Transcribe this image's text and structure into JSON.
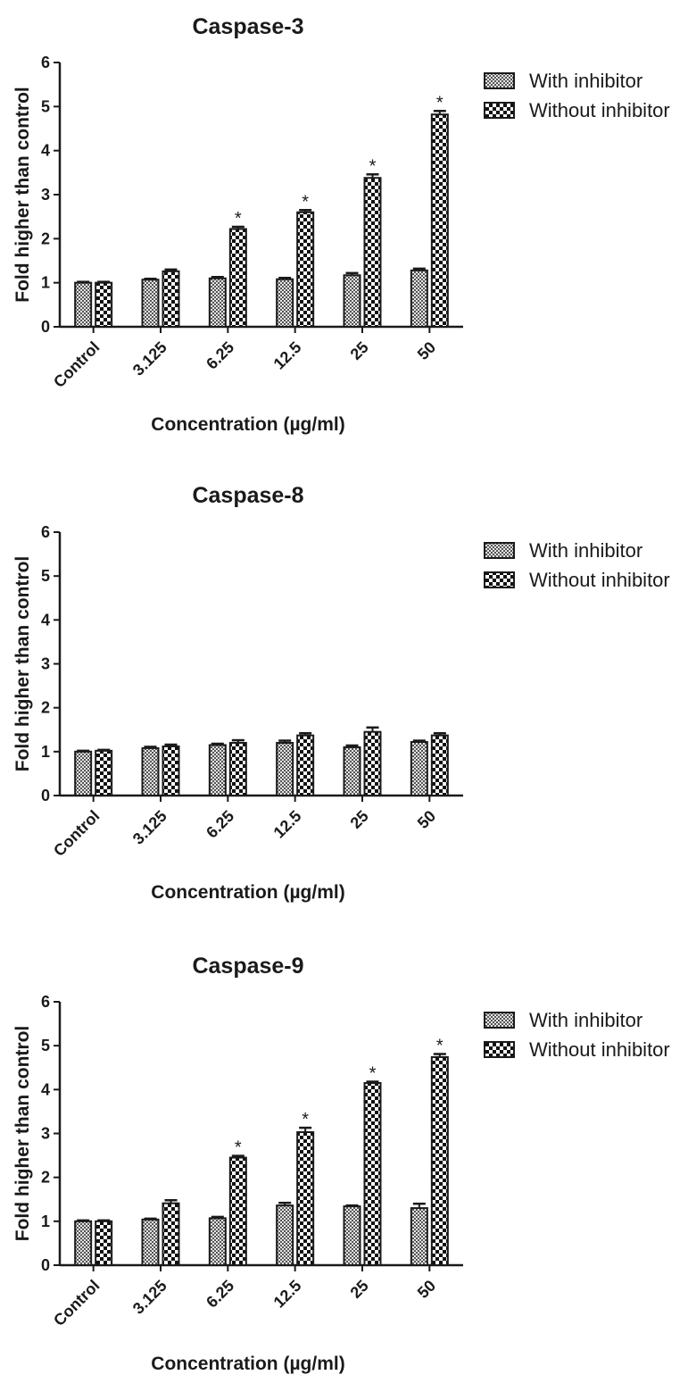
{
  "chart_data": [
    {
      "type": "bar",
      "title": "Caspase-3",
      "xlabel": "Concentration (µg/ml)",
      "ylabel": "Fold higher than control",
      "ylim": [
        0,
        6
      ],
      "yticks": [
        "0",
        "1",
        "2",
        "3",
        "4",
        "5",
        "6"
      ],
      "categories": [
        "Control",
        "3.125",
        "6.25",
        "12.5",
        "25",
        "50"
      ],
      "legend_position": "top-right",
      "series": [
        {
          "name": "With inhibitor",
          "values": [
            1.0,
            1.07,
            1.1,
            1.08,
            1.17,
            1.28
          ],
          "errors": [
            0.02,
            0.02,
            0.03,
            0.03,
            0.05,
            0.04
          ],
          "significant": [
            false,
            false,
            false,
            false,
            false,
            false
          ]
        },
        {
          "name": "Without inhibitor",
          "values": [
            1.0,
            1.26,
            2.22,
            2.6,
            3.38,
            4.82
          ],
          "errors": [
            0.02,
            0.04,
            0.05,
            0.05,
            0.08,
            0.08
          ],
          "significant": [
            false,
            false,
            true,
            true,
            true,
            true
          ]
        }
      ],
      "annotation": "*"
    },
    {
      "type": "bar",
      "title": "Caspase-8",
      "xlabel": "Concentration (µg/ml)",
      "ylabel": "Fold higher than control",
      "ylim": [
        0,
        6
      ],
      "yticks": [
        "0",
        "1",
        "2",
        "3",
        "4",
        "5",
        "6"
      ],
      "categories": [
        "Control",
        "3.125",
        "6.25",
        "12.5",
        "25",
        "50"
      ],
      "legend_position": "top-right",
      "series": [
        {
          "name": "With inhibitor",
          "values": [
            1.0,
            1.08,
            1.15,
            1.2,
            1.1,
            1.22
          ],
          "errors": [
            0.02,
            0.03,
            0.03,
            0.05,
            0.04,
            0.03
          ],
          "significant": [
            false,
            false,
            false,
            false,
            false,
            false
          ]
        },
        {
          "name": "Without inhibitor",
          "values": [
            1.02,
            1.12,
            1.2,
            1.37,
            1.45,
            1.37
          ],
          "errors": [
            0.02,
            0.04,
            0.06,
            0.05,
            0.1,
            0.05
          ],
          "significant": [
            false,
            false,
            false,
            false,
            false,
            false
          ]
        }
      ],
      "annotation": ""
    },
    {
      "type": "bar",
      "title": "Caspase-9",
      "xlabel": "Concentration (µg/ml)",
      "ylabel": "Fold higher than control",
      "ylim": [
        0,
        6
      ],
      "yticks": [
        "0",
        "1",
        "2",
        "3",
        "4",
        "5",
        "6"
      ],
      "categories": [
        "Control",
        "3.125",
        "6.25",
        "12.5",
        "25",
        "50"
      ],
      "legend_position": "top-right",
      "series": [
        {
          "name": "With inhibitor",
          "values": [
            1.0,
            1.04,
            1.07,
            1.36,
            1.34,
            1.3
          ],
          "errors": [
            0.02,
            0.02,
            0.03,
            0.06,
            0.02,
            0.1
          ],
          "significant": [
            false,
            false,
            false,
            false,
            false,
            false
          ]
        },
        {
          "name": "Without inhibitor",
          "values": [
            1.0,
            1.41,
            2.45,
            3.03,
            4.15,
            4.74
          ],
          "errors": [
            0.02,
            0.07,
            0.04,
            0.1,
            0.03,
            0.07
          ],
          "significant": [
            false,
            false,
            true,
            true,
            true,
            true
          ]
        }
      ],
      "annotation": "*"
    }
  ],
  "colors": {
    "ink": "#1a1a1a",
    "pattern_light": "#e6e6e6",
    "background": "#ffffff"
  }
}
